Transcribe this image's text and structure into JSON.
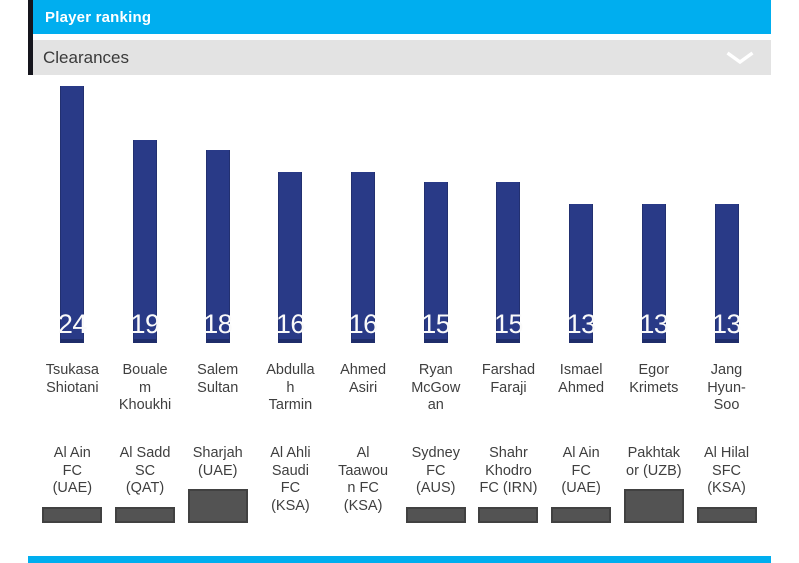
{
  "header": {
    "title": "Player ranking"
  },
  "selector": {
    "label": "Clearances",
    "icon": "chevron-down-icon"
  },
  "colors": {
    "header_bg": "#00aeef",
    "selector_bg": "#e3e3e3",
    "accent_strip": "#15151d",
    "bar": "#293a87",
    "value_text": "#fafafa",
    "label_text": "#3f3f3f",
    "logo_placeholder": "#535353",
    "footer_bar": "#00aeef"
  },
  "chart_data": {
    "type": "bar",
    "title": "Player ranking",
    "subtitle": "Clearances",
    "xlabel": "",
    "ylabel": "",
    "ylim": [
      0,
      24
    ],
    "grid": false,
    "legend": "none",
    "bar_color": "#293a87",
    "categories": [
      "Tsukasa Shiotani",
      "Boualem Khoukhi",
      "Salem Sultan",
      "Abdullah Tarmin",
      "Ahmed Asiri",
      "Ryan McGowan",
      "Farshad Faraji",
      "Ismael Ahmed",
      "Egor Krimets",
      "Jang Hyun-Soo"
    ],
    "values": [
      24,
      19,
      18,
      16,
      16,
      15,
      15,
      13,
      13,
      13
    ],
    "players": [
      {
        "name": "Tsukasa Shiotani",
        "name_lines": [
          "Tsukasa",
          "Shiotani"
        ],
        "club": "Al Ain FC (UAE)",
        "club_lines": [
          "Al Ain",
          "FC",
          "(UAE)"
        ],
        "value": 24
      },
      {
        "name": "Boualem Khoukhi",
        "name_lines": [
          "Bouale",
          "m",
          "Khoukhi"
        ],
        "club": "Al Sadd SC (QAT)",
        "club_lines": [
          "Al Sadd",
          "SC",
          "(QAT)"
        ],
        "value": 19
      },
      {
        "name": "Salem Sultan",
        "name_lines": [
          "Salem",
          "Sultan"
        ],
        "club": "Sharjah (UAE)",
        "club_lines": [
          "Sharjah",
          "(UAE)"
        ],
        "value": 18
      },
      {
        "name": "Abdullah Tarmin",
        "name_lines": [
          "Abdulla",
          "h",
          "Tarmin"
        ],
        "club": "Al Ahli Saudi FC (KSA)",
        "club_lines": [
          "Al Ahli",
          "Saudi",
          "FC",
          "(KSA)"
        ],
        "value": 16
      },
      {
        "name": "Ahmed Asiri",
        "name_lines": [
          "Ahmed",
          "Asiri"
        ],
        "club": "Al Taawoun FC (KSA)",
        "club_lines": [
          "Al",
          "Taawou",
          "n FC",
          "(KSA)"
        ],
        "value": 16
      },
      {
        "name": "Ryan McGowan",
        "name_lines": [
          "Ryan",
          "McGow",
          "an"
        ],
        "club": "Sydney FC (AUS)",
        "club_lines": [
          "Sydney",
          "FC",
          "(AUS)"
        ],
        "value": 15
      },
      {
        "name": "Farshad Faraji",
        "name_lines": [
          "Farshad",
          "Faraji"
        ],
        "club": "Shahr Khodro FC (IRN)",
        "club_lines": [
          "Shahr",
          "Khodro",
          "FC (IRN)"
        ],
        "value": 15
      },
      {
        "name": "Ismael Ahmed",
        "name_lines": [
          "Ismael",
          "Ahmed"
        ],
        "club": "Al Ain FC (UAE)",
        "club_lines": [
          "Al Ain",
          "FC",
          "(UAE)"
        ],
        "value": 13
      },
      {
        "name": "Egor Krimets",
        "name_lines": [
          "Egor",
          "Krimets"
        ],
        "club": "Pakhtakor (UZB)",
        "club_lines": [
          "Pakhtak",
          "or (UZB)"
        ],
        "value": 13
      },
      {
        "name": "Jang Hyun-Soo",
        "name_lines": [
          "Jang",
          "Hyun-",
          "Soo"
        ],
        "club": "Al Hilal SFC (KSA)",
        "club_lines": [
          "Al Hilal",
          "SFC",
          "(KSA)"
        ],
        "value": 13
      }
    ]
  }
}
